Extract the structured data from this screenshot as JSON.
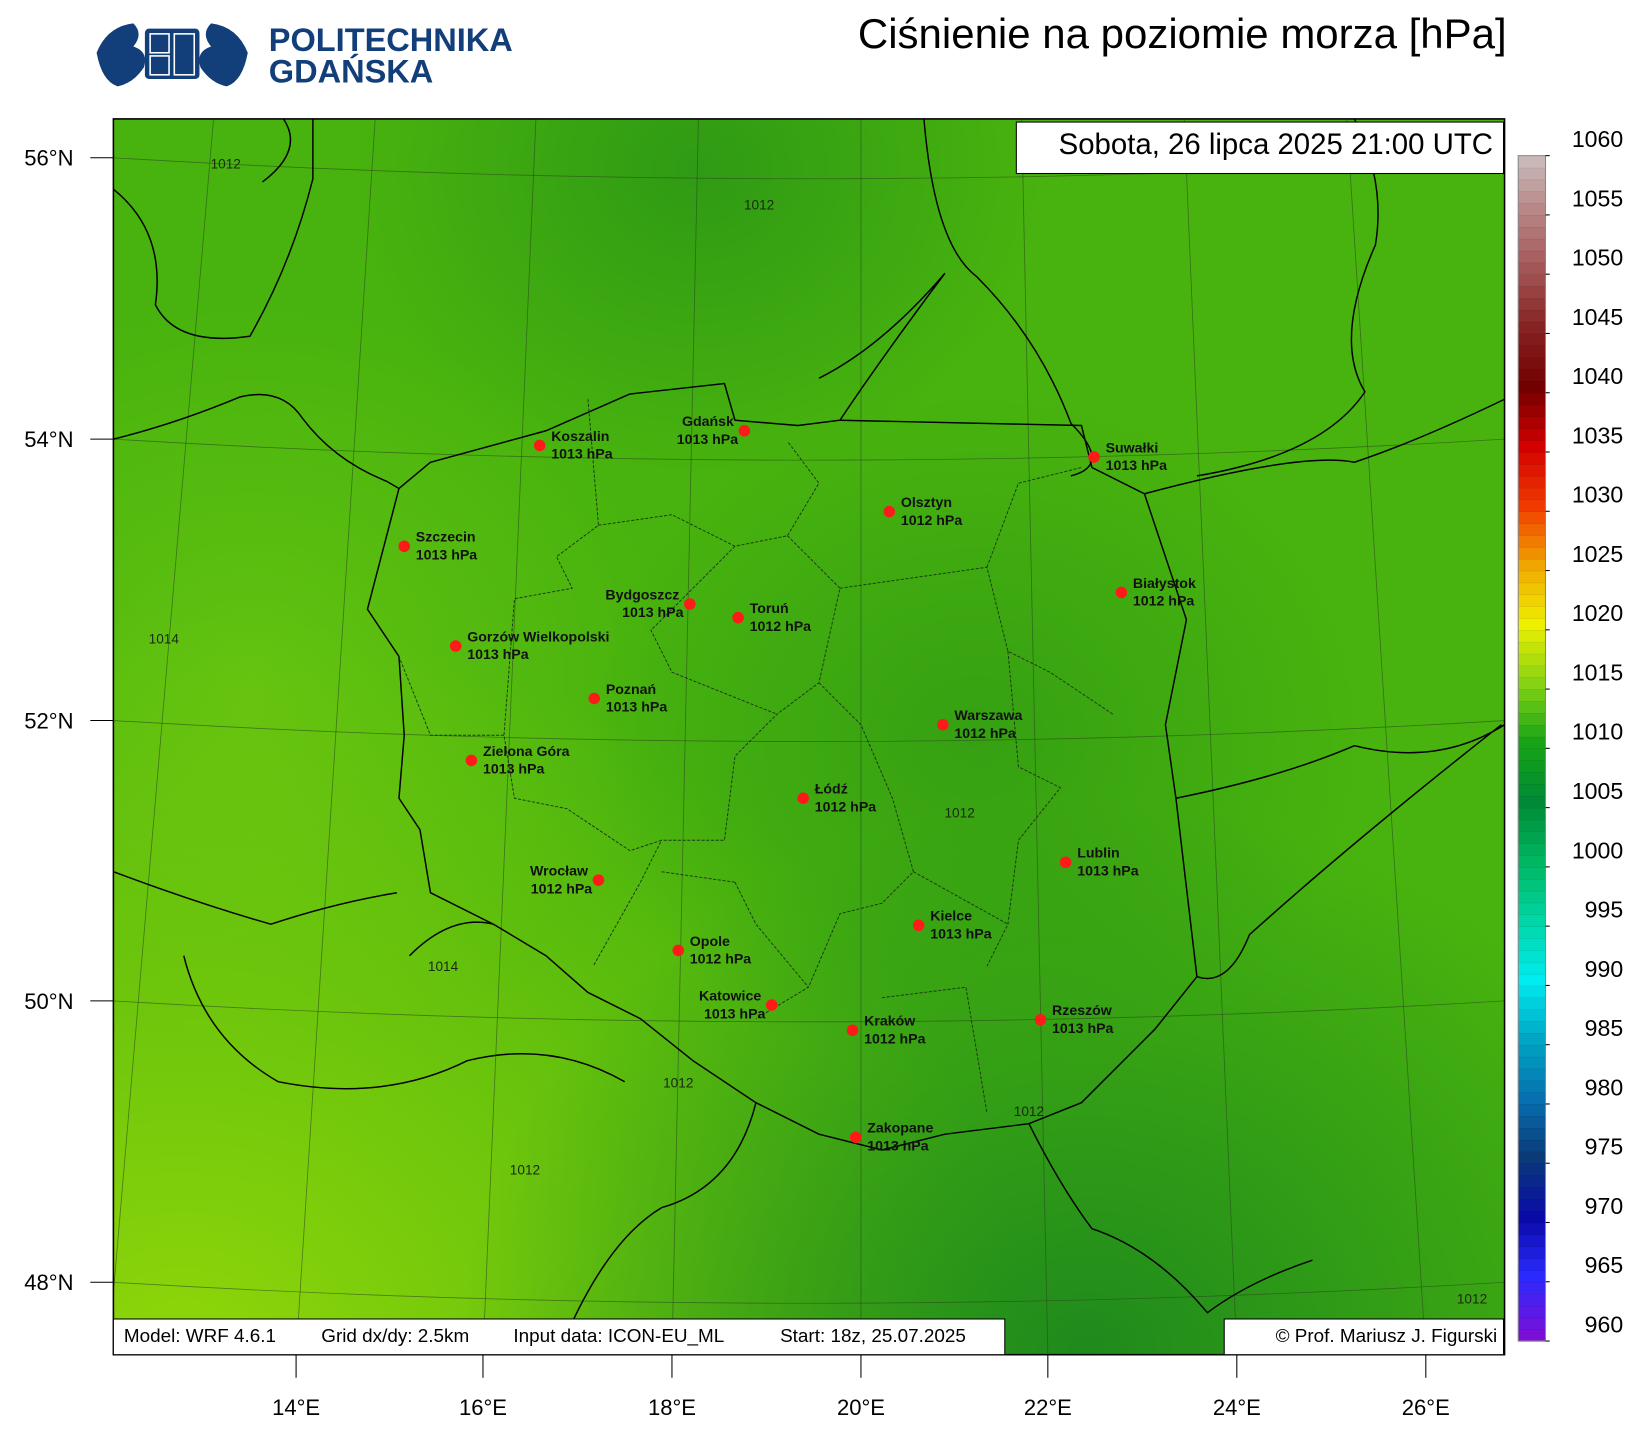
{
  "header": {
    "logo_line1": "POLITECHNIKA",
    "logo_line2": "GDAŃSKA",
    "title": "Ciśnienie na poziomie morza [hPa]"
  },
  "map": {
    "timestamp": "Sobota, 26 lipca 2025 21:00 UTC",
    "lat_labels": [
      "56°N",
      "54°N",
      "52°N",
      "50°N",
      "48°N"
    ],
    "lon_labels": [
      "14°E",
      "16°E",
      "18°E",
      "20°E",
      "22°E",
      "24°E",
      "26°E"
    ],
    "contour_labels": [
      "1012",
      "1012",
      "1014",
      "1012",
      "1014",
      "1012",
      "1012",
      "1012",
      "1012"
    ],
    "cities": [
      {
        "name": "Koszalin",
        "pressure": "1013 hPa"
      },
      {
        "name": "Gdańsk",
        "pressure": "1013 hPa"
      },
      {
        "name": "Suwałki",
        "pressure": "1013 hPa"
      },
      {
        "name": "Olsztyn",
        "pressure": "1012 hPa"
      },
      {
        "name": "Szczecin",
        "pressure": "1013 hPa"
      },
      {
        "name": "Białystok",
        "pressure": "1012 hPa"
      },
      {
        "name": "Bydgoszcz",
        "pressure": "1013 hPa"
      },
      {
        "name": "Toruń",
        "pressure": "1012 hPa"
      },
      {
        "name": "Gorzów Wielkopolski",
        "pressure": "1013 hPa"
      },
      {
        "name": "Poznań",
        "pressure": "1013 hPa"
      },
      {
        "name": "Warszawa",
        "pressure": "1012 hPa"
      },
      {
        "name": "Zielona Góra",
        "pressure": "1013 hPa"
      },
      {
        "name": "Łódź",
        "pressure": "1012 hPa"
      },
      {
        "name": "Lublin",
        "pressure": "1013 hPa"
      },
      {
        "name": "Wrocław",
        "pressure": "1012 hPa"
      },
      {
        "name": "Kielce",
        "pressure": "1013 hPa"
      },
      {
        "name": "Opole",
        "pressure": "1012 hPa"
      },
      {
        "name": "Katowice",
        "pressure": "1013 hPa"
      },
      {
        "name": "Kraków",
        "pressure": "1012 hPa"
      },
      {
        "name": "Rzeszów",
        "pressure": "1013 hPa"
      },
      {
        "name": "Zakopane",
        "pressure": "1013 hPa"
      }
    ]
  },
  "colorbar": {
    "ticks": [
      960,
      965,
      970,
      975,
      980,
      985,
      990,
      995,
      1000,
      1005,
      1010,
      1015,
      1020,
      1025,
      1030,
      1035,
      1040,
      1045,
      1050,
      1055,
      1060
    ]
  },
  "footer": {
    "model": "Model: WRF 4.6.1",
    "grid": "Grid dx/dy: 2.5km",
    "input": "Input data: ICON-EU_ML",
    "start": "Start: 18z, 25.07.2025",
    "credit": "© Prof. Mariusz J. Figurski"
  }
}
